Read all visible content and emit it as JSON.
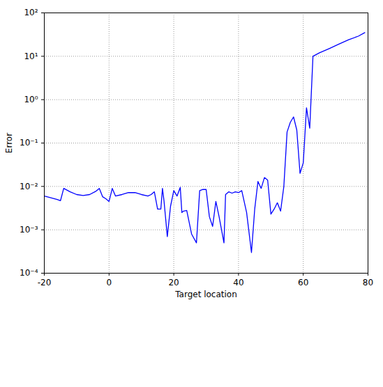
{
  "chart_data": {
    "type": "line",
    "x_label": "Target location",
    "y_label": "Error",
    "log": "y",
    "grid": true,
    "color": "#0000ff",
    "line_style": "solid",
    "xlim": [
      -20,
      80
    ],
    "xticks": [
      -20,
      0,
      20,
      40,
      60,
      80
    ],
    "ylim": [
      0.0001,
      100
    ],
    "yticks": [
      {
        "value": 0.0001,
        "label": "10⁻⁴"
      },
      {
        "value": 0.001,
        "label": "10⁻³"
      },
      {
        "value": 0.01,
        "label": "10⁻²"
      },
      {
        "value": 0.1,
        "label": "10⁻¹"
      },
      {
        "value": 1,
        "label": "10⁰"
      },
      {
        "value": 10,
        "label": "10¹"
      },
      {
        "value": 100,
        "label": "10²"
      }
    ],
    "x": [
      -20,
      -18,
      -16,
      -15,
      -14,
      -12,
      -10,
      -8,
      -6,
      -4,
      -3,
      -2,
      -1,
      0,
      1,
      2,
      4,
      6,
      8,
      10,
      12,
      13,
      14,
      15,
      16,
      16.5,
      17,
      18,
      19,
      20,
      21,
      22,
      22.5,
      23,
      24,
      25.5,
      27,
      28,
      29,
      30,
      31,
      32,
      33,
      34,
      35.5,
      36,
      37,
      38,
      39,
      40,
      41,
      42.5,
      44,
      45,
      46,
      47,
      48,
      49,
      50,
      51,
      52,
      53,
      54,
      55,
      56,
      57,
      58,
      59,
      60,
      61,
      62,
      63,
      65,
      68,
      71,
      74,
      77,
      79
    ],
    "values": [
      0.006,
      0.0055,
      0.005,
      0.0047,
      0.009,
      0.0075,
      0.0065,
      0.0062,
      0.0065,
      0.0078,
      0.009,
      0.0058,
      0.0052,
      0.0045,
      0.009,
      0.006,
      0.0065,
      0.0072,
      0.0072,
      0.0065,
      0.006,
      0.0065,
      0.0075,
      0.003,
      0.003,
      0.009,
      0.0045,
      0.0007,
      0.0035,
      0.008,
      0.006,
      0.0095,
      0.0025,
      0.0027,
      0.0028,
      0.0008,
      0.0005,
      0.008,
      0.0085,
      0.0085,
      0.002,
      0.0012,
      0.0045,
      0.002,
      0.0005,
      0.0065,
      0.0075,
      0.007,
      0.0075,
      0.0072,
      0.008,
      0.0025,
      0.0003,
      0.003,
      0.013,
      0.009,
      0.016,
      0.014,
      0.0023,
      0.003,
      0.0042,
      0.0027,
      0.01,
      0.18,
      0.3,
      0.4,
      0.2,
      0.02,
      0.035,
      0.65,
      0.22,
      10,
      12,
      15,
      19,
      24,
      29,
      35
    ]
  }
}
